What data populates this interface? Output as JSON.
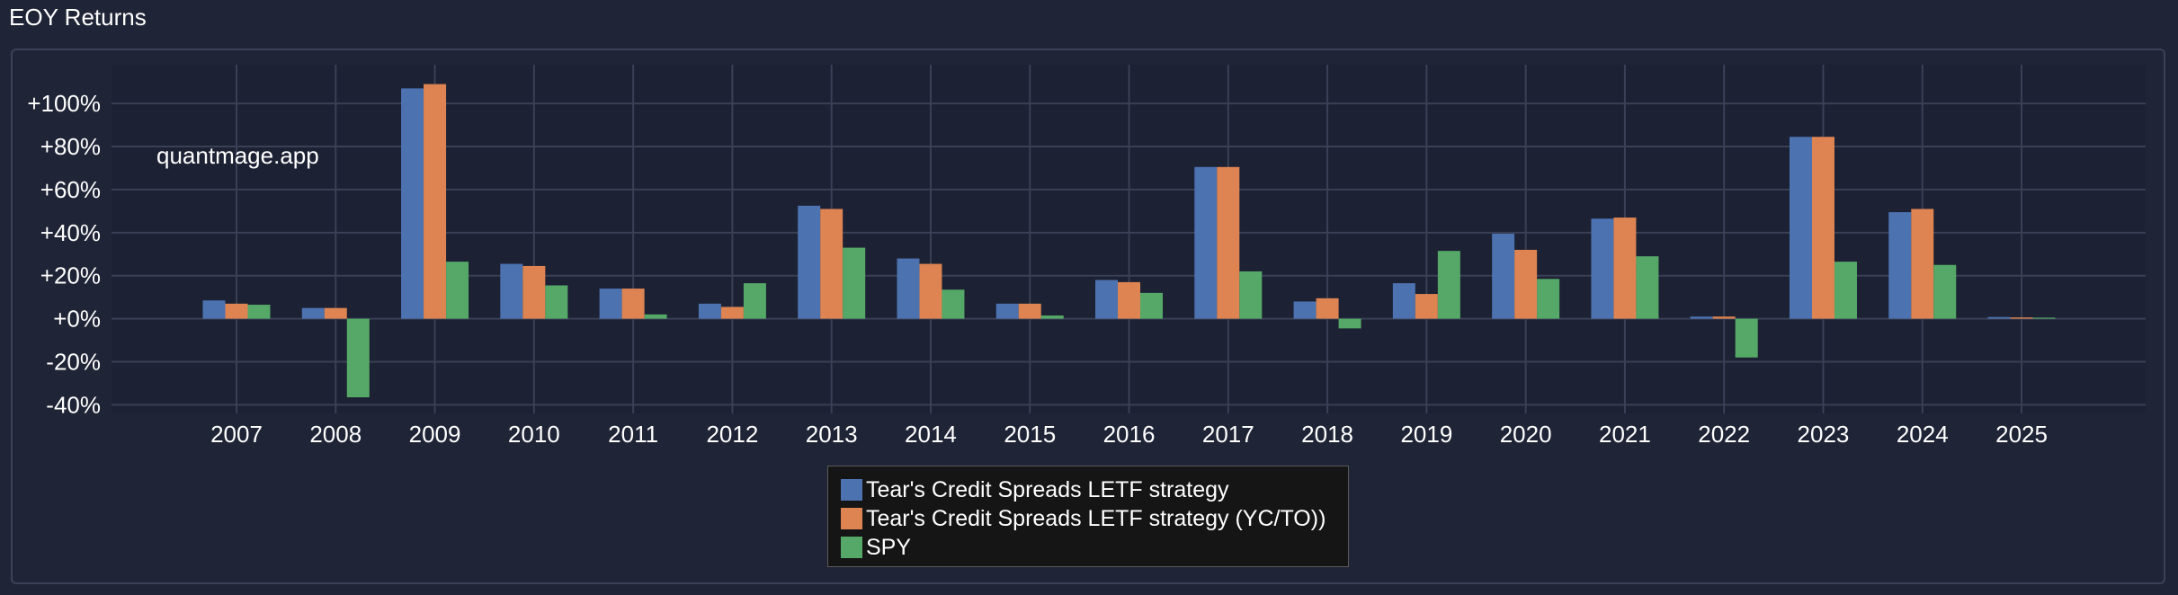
{
  "panel": {
    "title": "EOY Returns"
  },
  "watermark": "quantmage.app",
  "colors": {
    "background": "#1f2436",
    "plot_background": "#1c2133",
    "grid": "#3a4055",
    "series": [
      "#4c72b0",
      "#dd8452",
      "#55a868"
    ]
  },
  "chart_data": {
    "type": "bar",
    "title": "EOY Returns",
    "xlabel": "",
    "ylabel": "",
    "categories": [
      "2007",
      "2008",
      "2009",
      "2010",
      "2011",
      "2012",
      "2013",
      "2014",
      "2015",
      "2016",
      "2017",
      "2018",
      "2019",
      "2020",
      "2021",
      "2022",
      "2023",
      "2024",
      "2025"
    ],
    "series": [
      {
        "name": "Tear's Credit Spreads LETF strategy",
        "values": [
          8.5,
          5,
          107,
          25.5,
          14,
          7,
          52.5,
          28,
          7,
          18,
          70.5,
          8,
          16.5,
          39.5,
          46.5,
          1,
          84.5,
          49.5,
          0.8
        ]
      },
      {
        "name": "Tear's Credit Spreads LETF strategy (YC/TO))",
        "values": [
          7,
          5,
          109,
          24.5,
          14,
          5.5,
          51,
          25.5,
          7,
          17,
          70.5,
          9.5,
          11.5,
          32,
          47,
          1,
          84.5,
          51,
          0.6
        ]
      },
      {
        "name": "SPY",
        "values": [
          6.5,
          -36.5,
          26.5,
          15.5,
          2,
          16.5,
          33,
          13.5,
          1.5,
          12,
          22,
          -4.5,
          31.5,
          18.5,
          29,
          -18,
          26.5,
          25,
          0.5
        ]
      }
    ],
    "ylim": [
      -44,
      118
    ],
    "yticks": [
      -40,
      -20,
      0,
      20,
      40,
      60,
      80,
      100
    ],
    "ytick_labels": [
      "-40%",
      "-20%",
      "+0%",
      "+20%",
      "+40%",
      "+60%",
      "+80%",
      "+100%"
    ],
    "grid": true,
    "legend_position": "bottom-center"
  }
}
